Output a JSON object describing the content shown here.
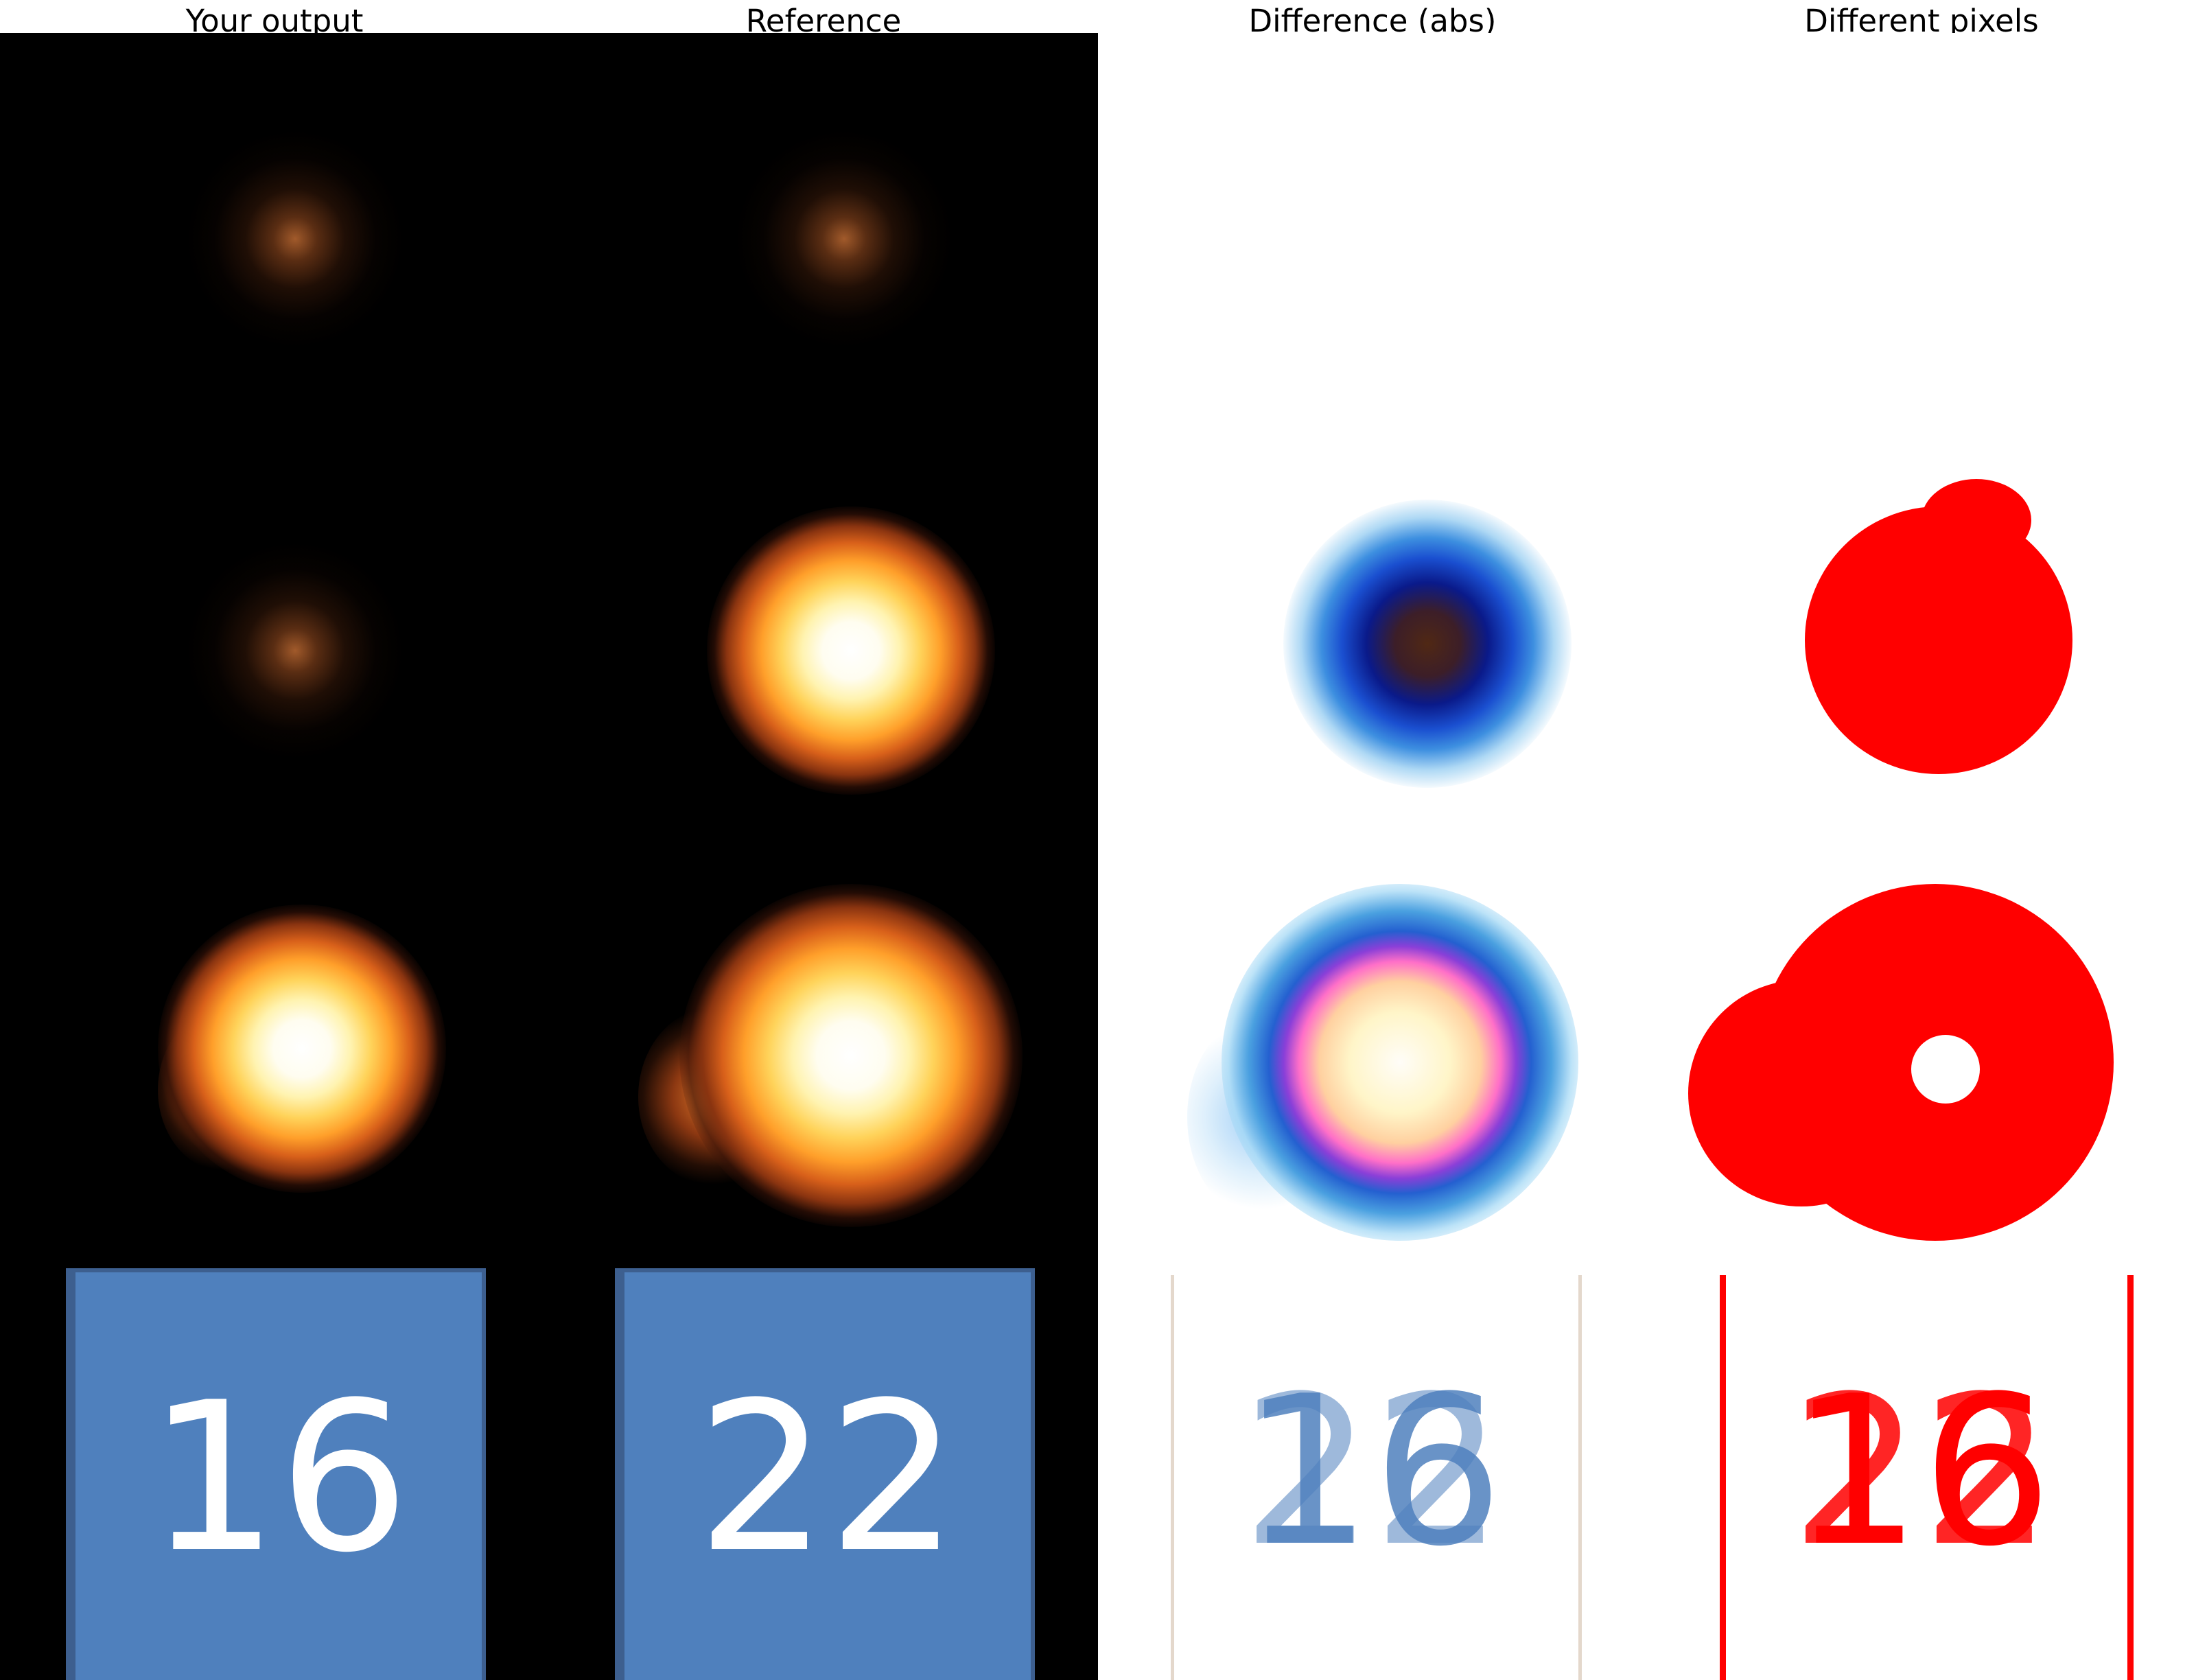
{
  "columns": {
    "output": "Your output",
    "reference": "Reference",
    "difference": "Difference (abs)",
    "different_pixels": "Different pixels"
  },
  "tiles": {
    "output_value": "16",
    "reference_value": "22"
  },
  "colors": {
    "tile_fill": "#4f80bd",
    "diff_mark": "#ff0000",
    "background_dark": "#000000"
  }
}
